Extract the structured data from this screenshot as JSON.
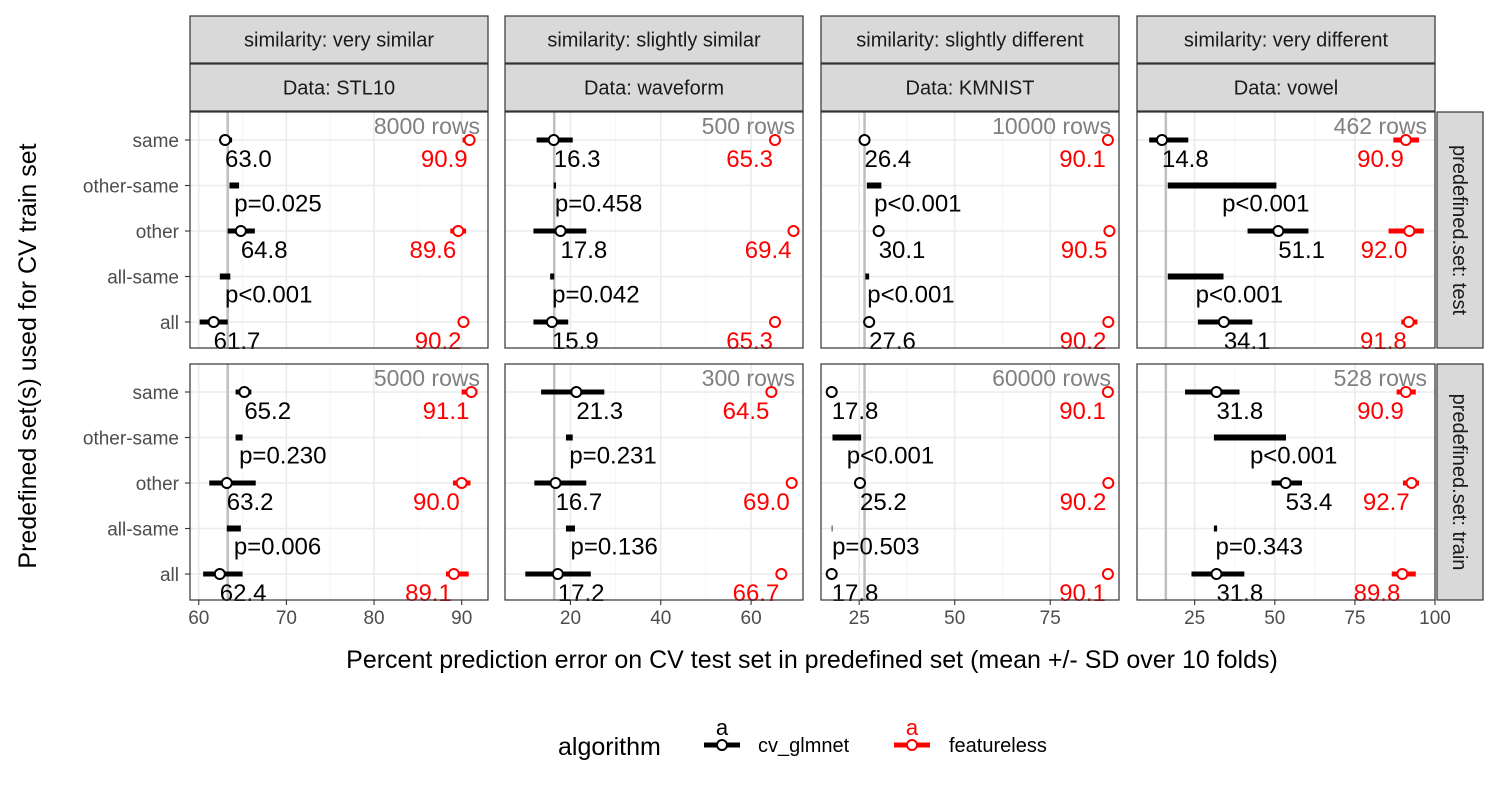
{
  "chart_data": {
    "type": "faceted-interval-plot",
    "xlabel": "Percent prediction error on CV test set in predefined set (mean +/- SD over 10 folds)",
    "ylabel": "Predefined set(s) used for CV train set",
    "y_categories": [
      "same",
      "other-same",
      "other",
      "all-same",
      "all"
    ],
    "column_prefix": "similarity: ",
    "row_prefix": "predefined.set: ",
    "data_prefix": "Data: ",
    "legend": {
      "title": "algorithm",
      "entries": [
        {
          "name": "cv_glmnet",
          "color": "#000000",
          "key_letter": "a"
        },
        {
          "name": "featureless",
          "color": "#ff0000",
          "key_letter": "a"
        }
      ]
    },
    "columns": [
      {
        "similarity": "very similar",
        "data": "STL10",
        "xlim": [
          59,
          93
        ],
        "ticks": [
          60,
          70,
          80,
          90
        ],
        "tick_labels": [
          "60",
          "70",
          "80",
          "90"
        ],
        "vline": 63.3
      },
      {
        "similarity": "slightly similar",
        "data": "waveform",
        "xlim": [
          5.5,
          71.5
        ],
        "ticks": [
          20,
          40,
          60
        ],
        "tick_labels": [
          "20",
          "40",
          "60"
        ],
        "vline": 16.4
      },
      {
        "similarity": "slightly different",
        "data": "KMNIST",
        "xlim": [
          15,
          93
        ],
        "ticks": [
          25,
          50,
          75
        ],
        "tick_labels": [
          "25",
          "50",
          "75"
        ],
        "vline": 26.4
      },
      {
        "similarity": "very different",
        "data": "vowel",
        "xlim": [
          7,
          100
        ],
        "ticks": [
          25,
          50,
          75,
          100
        ],
        "tick_labels": [
          "25",
          "50",
          "75",
          "100"
        ],
        "vline": 16.0
      }
    ],
    "rows": [
      {
        "set": "test",
        "panels": [
          {
            "rows_label": "8000 rows",
            "glmnet": [
              {
                "y": "same",
                "mean": 63.0,
                "lo": 62.4,
                "hi": 63.8,
                "label": "63.0"
              },
              {
                "y": "other",
                "mean": 64.8,
                "lo": 63.3,
                "hi": 66.4,
                "label": "64.8"
              },
              {
                "y": "all",
                "mean": 61.7,
                "lo": 60.1,
                "hi": 63.3,
                "label": "61.7"
              }
            ],
            "featureless": [
              {
                "y": "same",
                "mean": 90.9,
                "lo": 90.1,
                "hi": 91.5,
                "label": "90.9"
              },
              {
                "y": "other",
                "mean": 89.6,
                "lo": 88.7,
                "hi": 90.5,
                "label": "89.6"
              },
              {
                "y": "all",
                "mean": 90.2,
                "lo": 89.6,
                "hi": 90.8,
                "label": "90.2"
              }
            ],
            "diffs": [
              {
                "y": "other-same",
                "lo": 63.5,
                "hi": 64.6,
                "label": "p=0.025"
              },
              {
                "y": "all-same",
                "lo": 62.4,
                "hi": 63.6,
                "label": "p<0.001"
              }
            ]
          },
          {
            "rows_label": "500 rows",
            "glmnet": [
              {
                "y": "same",
                "mean": 16.3,
                "lo": 12.5,
                "hi": 20.5,
                "label": "16.3"
              },
              {
                "y": "other",
                "mean": 17.8,
                "lo": 11.8,
                "hi": 23.5,
                "label": "17.8"
              },
              {
                "y": "all",
                "mean": 15.9,
                "lo": 11.8,
                "hi": 19.5,
                "label": "15.9"
              }
            ],
            "featureless": [
              {
                "y": "same",
                "mean": 65.3,
                "lo": 64.8,
                "hi": 65.8,
                "label": "65.3"
              },
              {
                "y": "other",
                "mean": 69.4,
                "lo": 69.0,
                "hi": 69.8,
                "label": "69.4"
              },
              {
                "y": "all",
                "mean": 65.3,
                "lo": 64.8,
                "hi": 65.8,
                "label": "65.3"
              }
            ],
            "diffs": [
              {
                "y": "other-same",
                "lo": 16.3,
                "hi": 16.8,
                "label": "p=0.458"
              },
              {
                "y": "all-same",
                "lo": 15.5,
                "hi": 16.4,
                "label": "p=0.042"
              }
            ]
          },
          {
            "rows_label": "10000 rows",
            "glmnet": [
              {
                "y": "same",
                "mean": 26.4,
                "lo": 25.4,
                "hi": 27.4,
                "label": "26.4"
              },
              {
                "y": "other",
                "mean": 30.1,
                "lo": 29.0,
                "hi": 31.2,
                "label": "30.1"
              },
              {
                "y": "all",
                "mean": 27.6,
                "lo": 26.6,
                "hi": 28.6,
                "label": "27.6"
              }
            ],
            "featureless": [
              {
                "y": "same",
                "mean": 90.1,
                "lo": 89.6,
                "hi": 90.6,
                "label": "90.1"
              },
              {
                "y": "other",
                "mean": 90.5,
                "lo": 90.0,
                "hi": 91.0,
                "label": "90.5"
              },
              {
                "y": "all",
                "mean": 90.2,
                "lo": 89.7,
                "hi": 90.7,
                "label": "90.2"
              }
            ],
            "diffs": [
              {
                "y": "other-same",
                "lo": 27.0,
                "hi": 30.8,
                "label": "p<0.001"
              },
              {
                "y": "all-same",
                "lo": 26.6,
                "hi": 27.6,
                "label": "p<0.001"
              }
            ]
          },
          {
            "rows_label": "462 rows",
            "glmnet": [
              {
                "y": "same",
                "mean": 14.8,
                "lo": 10.8,
                "hi": 23.0,
                "label": "14.8"
              },
              {
                "y": "other",
                "mean": 51.1,
                "lo": 41.5,
                "hi": 60.5,
                "label": "51.1"
              },
              {
                "y": "all",
                "mean": 34.1,
                "lo": 26.0,
                "hi": 43.0,
                "label": "34.1"
              }
            ],
            "featureless": [
              {
                "y": "same",
                "mean": 90.9,
                "lo": 87.0,
                "hi": 95.0,
                "label": "90.9"
              },
              {
                "y": "other",
                "mean": 92.0,
                "lo": 85.5,
                "hi": 96.5,
                "label": "92.0"
              },
              {
                "y": "all",
                "mean": 91.8,
                "lo": 89.5,
                "hi": 94.5,
                "label": "91.8"
              }
            ],
            "diffs": [
              {
                "y": "other-same",
                "lo": 16.6,
                "hi": 50.5,
                "label": "p<0.001"
              },
              {
                "y": "all-same",
                "lo": 16.6,
                "hi": 34.0,
                "label": "p<0.001"
              }
            ]
          }
        ]
      },
      {
        "set": "train",
        "panels": [
          {
            "rows_label": "5000 rows",
            "glmnet": [
              {
                "y": "same",
                "mean": 65.2,
                "lo": 64.2,
                "hi": 66.0,
                "label": "65.2"
              },
              {
                "y": "other",
                "mean": 63.2,
                "lo": 61.2,
                "hi": 66.5,
                "label": "63.2"
              },
              {
                "y": "all",
                "mean": 62.4,
                "lo": 60.5,
                "hi": 65.0,
                "label": "62.4"
              }
            ],
            "featureless": [
              {
                "y": "same",
                "mean": 91.1,
                "lo": 90.0,
                "hi": 91.8,
                "label": "91.1"
              },
              {
                "y": "other",
                "mean": 90.0,
                "lo": 89.0,
                "hi": 91.0,
                "label": "90.0"
              },
              {
                "y": "all",
                "mean": 89.1,
                "lo": 88.2,
                "hi": 90.8,
                "label": "89.1"
              }
            ],
            "diffs": [
              {
                "y": "other-same",
                "lo": 64.2,
                "hi": 65.0,
                "label": "p=0.230"
              },
              {
                "y": "all-same",
                "lo": 63.2,
                "hi": 64.8,
                "label": "p=0.006"
              }
            ]
          },
          {
            "rows_label": "300 rows",
            "glmnet": [
              {
                "y": "same",
                "mean": 21.3,
                "lo": 13.5,
                "hi": 27.5,
                "label": "21.3"
              },
              {
                "y": "other",
                "mean": 16.7,
                "lo": 12.0,
                "hi": 23.5,
                "label": "16.7"
              },
              {
                "y": "all",
                "mean": 17.2,
                "lo": 10.0,
                "hi": 24.5,
                "label": "17.2"
              }
            ],
            "featureless": [
              {
                "y": "same",
                "mean": 64.5,
                "lo": 64.0,
                "hi": 65.3,
                "label": "64.5"
              },
              {
                "y": "other",
                "mean": 69.0,
                "lo": 68.5,
                "hi": 69.8,
                "label": "69.0"
              },
              {
                "y": "all",
                "mean": 66.7,
                "lo": 66.0,
                "hi": 67.5,
                "label": "66.7"
              }
            ],
            "diffs": [
              {
                "y": "other-same",
                "lo": 19.0,
                "hi": 20.5,
                "label": "p=0.231"
              },
              {
                "y": "all-same",
                "lo": 19.0,
                "hi": 21.0,
                "label": "p=0.136"
              }
            ]
          },
          {
            "rows_label": "60000 rows",
            "glmnet": [
              {
                "y": "same",
                "mean": 17.8,
                "lo": 17.8,
                "hi": 17.8,
                "label": "17.8"
              },
              {
                "y": "other",
                "mean": 25.2,
                "lo": 25.2,
                "hi": 25.2,
                "label": "25.2"
              },
              {
                "y": "all",
                "mean": 17.8,
                "lo": 17.8,
                "hi": 17.8,
                "label": "17.8"
              }
            ],
            "featureless": [
              {
                "y": "same",
                "mean": 90.1,
                "lo": 90.1,
                "hi": 90.1,
                "label": "90.1"
              },
              {
                "y": "other",
                "mean": 90.2,
                "lo": 90.2,
                "hi": 90.2,
                "label": "90.2"
              },
              {
                "y": "all",
                "mean": 90.1,
                "lo": 90.1,
                "hi": 90.1,
                "label": "90.1"
              }
            ],
            "diffs": [
              {
                "y": "other-same",
                "lo": 18.0,
                "hi": 25.5,
                "label": "p<0.001"
              },
              {
                "y": "all-same",
                "lo": 17.8,
                "hi": 18.0,
                "label": "p=0.503"
              }
            ]
          },
          {
            "rows_label": "528 rows",
            "glmnet": [
              {
                "y": "same",
                "mean": 31.8,
                "lo": 22.0,
                "hi": 39.0,
                "label": "31.8"
              },
              {
                "y": "other",
                "mean": 53.4,
                "lo": 49.0,
                "hi": 58.5,
                "label": "53.4"
              },
              {
                "y": "all",
                "mean": 31.8,
                "lo": 24.0,
                "hi": 40.5,
                "label": "31.8"
              }
            ],
            "featureless": [
              {
                "y": "same",
                "mean": 90.9,
                "lo": 88.0,
                "hi": 94.0,
                "label": "90.9"
              },
              {
                "y": "other",
                "mean": 92.7,
                "lo": 90.0,
                "hi": 95.0,
                "label": "92.7"
              },
              {
                "y": "all",
                "mean": 89.8,
                "lo": 86.5,
                "hi": 94.0,
                "label": "89.8"
              }
            ],
            "diffs": [
              {
                "y": "other-same",
                "lo": 31.0,
                "hi": 53.5,
                "label": "p<0.001"
              },
              {
                "y": "all-same",
                "lo": 31.0,
                "hi": 32.0,
                "label": "p=0.343"
              }
            ]
          }
        ]
      }
    ]
  }
}
